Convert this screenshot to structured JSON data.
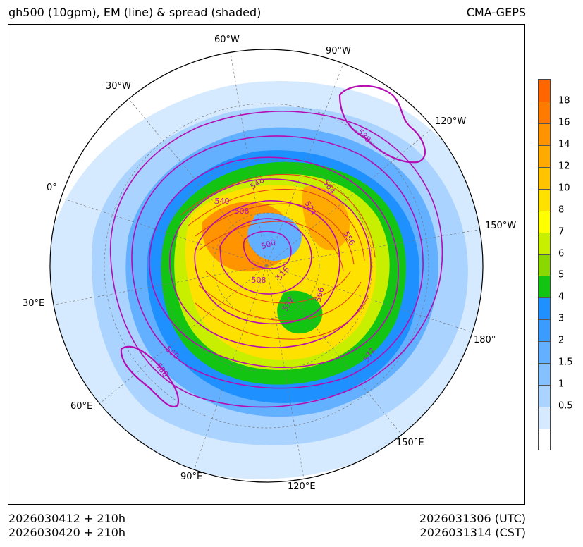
{
  "header": {
    "title_left": "gh500 (10gpm), EM (line) & spread (shaded)",
    "title_right": "CMA-GEPS"
  },
  "footer": {
    "init_utc": "2026030412 + 210h",
    "init_cst": "2026030420 + 210h",
    "valid_utc": "2026031306 (UTC)",
    "valid_cst": "2026031314 (CST)"
  },
  "map": {
    "projection": "north-polar-stereographic",
    "longitude_labels": [
      "60°W",
      "90°W",
      "30°W",
      "120°W",
      "0°",
      "150°W",
      "30°E",
      "180°",
      "60°E",
      "150°E",
      "90°E",
      "120°E"
    ],
    "contour_labels": [
      "588",
      "548",
      "564",
      "540",
      "508",
      "524",
      "500",
      "556",
      "516",
      "508",
      "532",
      "556",
      "580",
      "588",
      "572"
    ]
  },
  "colorbar": {
    "ticks": [
      "18",
      "16",
      "14",
      "12",
      "10",
      "8",
      "7",
      "6",
      "5",
      "4",
      "3",
      "2",
      "1.5",
      "1",
      "0.5"
    ],
    "colors": [
      "#ff6600",
      "#ff7b00",
      "#ff9300",
      "#ffaa00",
      "#ffc300",
      "#ffe100",
      "#ffff00",
      "#c8ee00",
      "#8ad800",
      "#13c413",
      "#1e90ff",
      "#3a9cff",
      "#62b0ff",
      "#85c1ff",
      "#aad3ff",
      "#d6eaff",
      "#ffffff"
    ],
    "contour_color": "#b30db3",
    "isoheight_color": "#e0421e"
  }
}
